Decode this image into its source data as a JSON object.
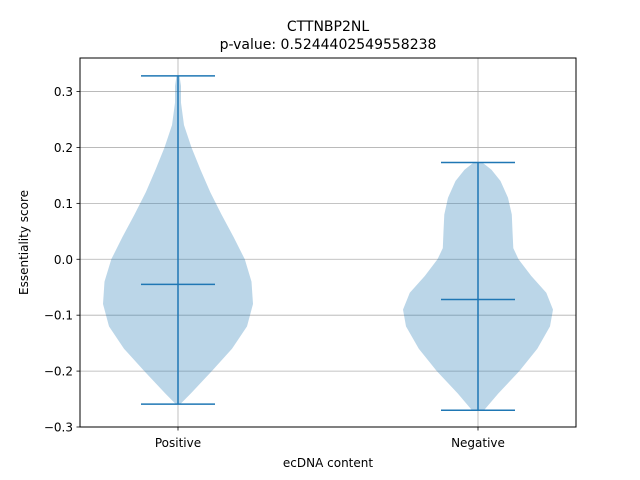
{
  "chart_data": {
    "type": "violin",
    "title": "CTTNBP2NL",
    "subtitle": "p-value: 0.5244402549558238",
    "xlabel": "ecDNA content",
    "ylabel": "Essentiality score",
    "categories": [
      "Positive",
      "Negative"
    ],
    "ylim": [
      -0.3,
      0.36
    ],
    "yticks": [
      -0.3,
      -0.2,
      -0.1,
      0.0,
      0.1,
      0.2,
      0.3
    ],
    "ytick_labels": [
      "−0.3",
      "−0.2",
      "−0.1",
      "0.0",
      "0.1",
      "0.2",
      "0.3"
    ],
    "grid": true,
    "colors": {
      "body": "#1f77b4",
      "body_opacity": 0.3,
      "lines": "#1f77b4",
      "grid": "#b0b0b0"
    },
    "violins": [
      {
        "category": "Positive",
        "min": -0.259,
        "max": 0.328,
        "median": -0.045,
        "density_profile": [
          [
            -0.259,
            0.03
          ],
          [
            -0.24,
            0.17
          ],
          [
            -0.2,
            0.45
          ],
          [
            -0.16,
            0.72
          ],
          [
            -0.12,
            0.92
          ],
          [
            -0.08,
            1.0
          ],
          [
            -0.04,
            0.98
          ],
          [
            0.0,
            0.89
          ],
          [
            0.04,
            0.74
          ],
          [
            0.08,
            0.58
          ],
          [
            0.12,
            0.43
          ],
          [
            0.16,
            0.3
          ],
          [
            0.2,
            0.18
          ],
          [
            0.24,
            0.08
          ],
          [
            0.28,
            0.04
          ],
          [
            0.31,
            0.04
          ],
          [
            0.328,
            0.02
          ]
        ]
      },
      {
        "category": "Negative",
        "min": -0.27,
        "max": 0.173,
        "median": -0.072,
        "density_profile": [
          [
            -0.27,
            0.08
          ],
          [
            -0.24,
            0.27
          ],
          [
            -0.2,
            0.55
          ],
          [
            -0.16,
            0.79
          ],
          [
            -0.12,
            0.96
          ],
          [
            -0.09,
            1.0
          ],
          [
            -0.06,
            0.91
          ],
          [
            -0.03,
            0.71
          ],
          [
            0.0,
            0.54
          ],
          [
            0.02,
            0.47
          ],
          [
            0.05,
            0.46
          ],
          [
            0.08,
            0.45
          ],
          [
            0.11,
            0.4
          ],
          [
            0.14,
            0.3
          ],
          [
            0.16,
            0.18
          ],
          [
            0.173,
            0.06
          ]
        ]
      }
    ]
  }
}
